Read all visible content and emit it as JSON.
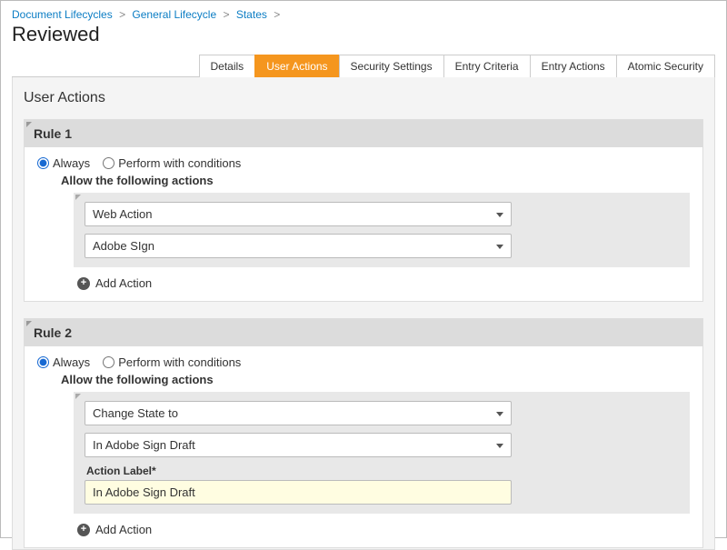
{
  "breadcrumb": {
    "items": [
      {
        "label": "Document Lifecycles"
      },
      {
        "label": "General Lifecycle"
      },
      {
        "label": "States"
      }
    ]
  },
  "page_title": "Reviewed",
  "tabs": [
    {
      "label": "Details",
      "active": false
    },
    {
      "label": "User Actions",
      "active": true
    },
    {
      "label": "Security Settings",
      "active": false
    },
    {
      "label": "Entry Criteria",
      "active": false
    },
    {
      "label": "Entry Actions",
      "active": false
    },
    {
      "label": "Atomic Security",
      "active": false
    }
  ],
  "section_title": "User Actions",
  "radio_options": {
    "always": "Always",
    "conditions": "Perform with conditions"
  },
  "allow_label": "Allow the following actions",
  "action_label_field": "Action Label*",
  "add_action_label": "Add Action",
  "rules": [
    {
      "title": "Rule 1",
      "radio": "always",
      "selects": [
        {
          "value": "Web Action"
        },
        {
          "value": "Adobe SIgn"
        }
      ],
      "action_label_value": null
    },
    {
      "title": "Rule 2",
      "radio": "always",
      "selects": [
        {
          "value": "Change State to"
        },
        {
          "value": "In Adobe Sign Draft"
        }
      ],
      "action_label_value": "In Adobe Sign Draft"
    }
  ],
  "colors": {
    "tab_active_bg": "#f5961e",
    "link": "#0b7dc4",
    "input_highlight_bg": "#fffde1"
  }
}
